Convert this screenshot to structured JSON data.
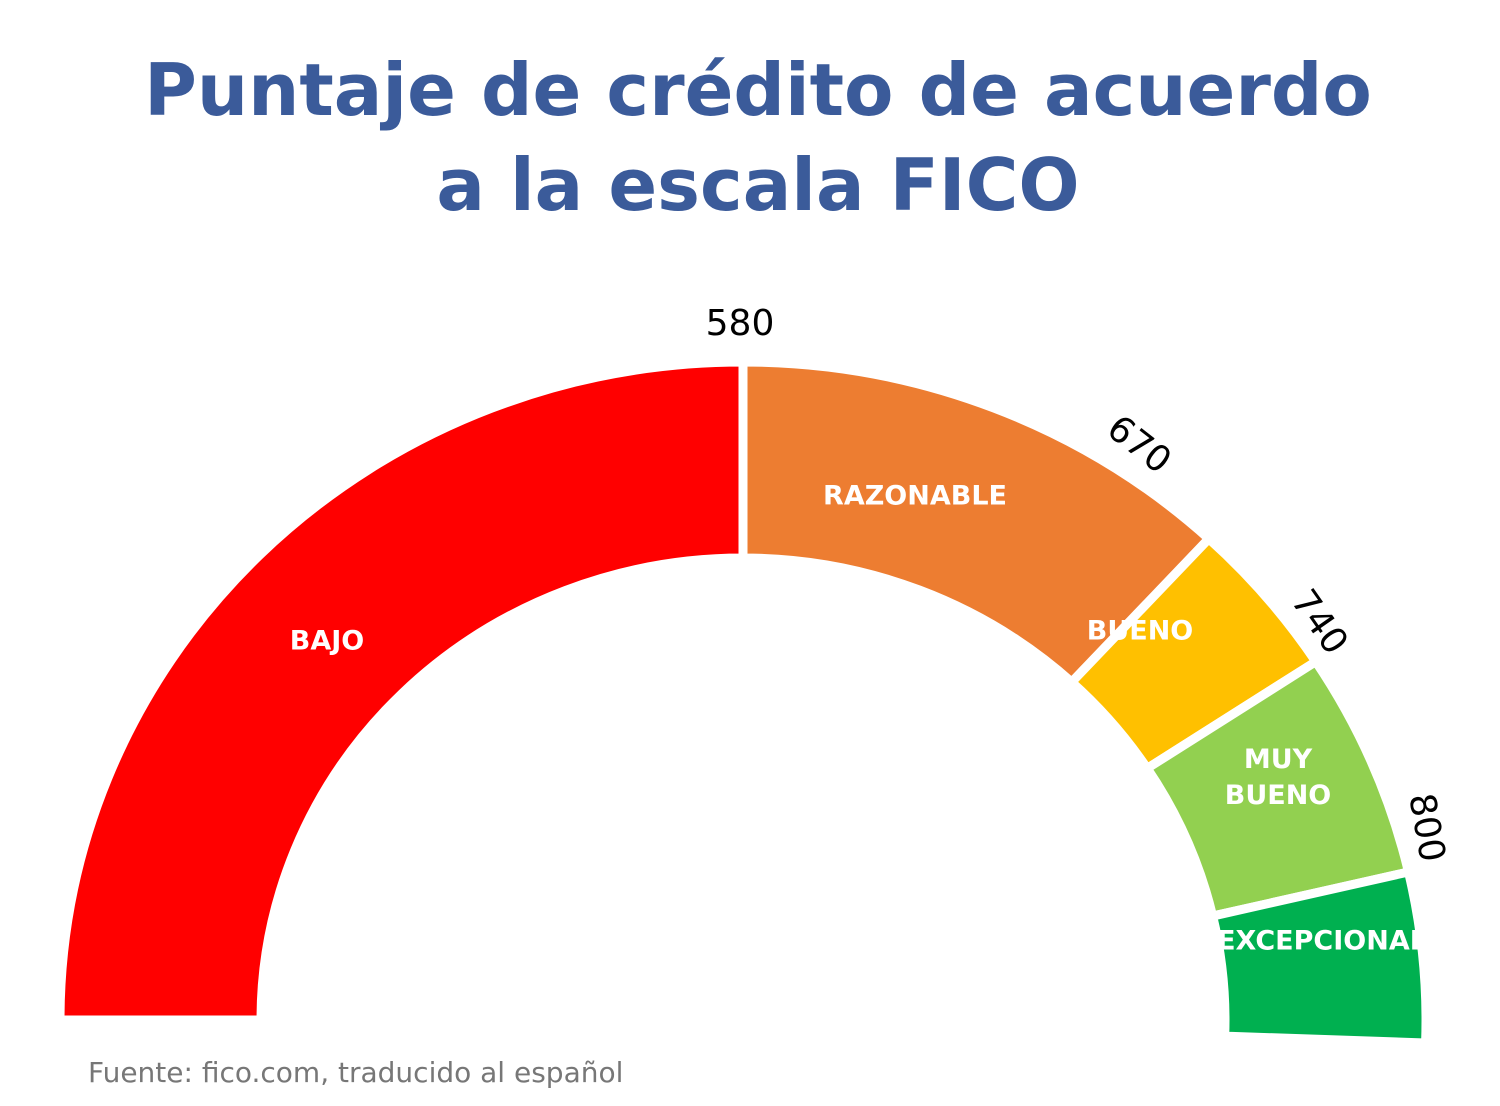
{
  "chart_data": {
    "type": "gauge",
    "title": [
      "Puntaje de crédito de acuerdo",
      "a la escala FICO"
    ],
    "segments": [
      {
        "name": "BAJO",
        "color": "#ff0000"
      },
      {
        "name": "RAZONABLE",
        "color": "#ed7d31"
      },
      {
        "name": "BUENO",
        "color": "#ffc000"
      },
      {
        "name": "MUY BUENO",
        "color": "#92d050"
      },
      {
        "name": "EXCEPCIONAL",
        "color": "#00b050"
      }
    ],
    "ticks": [
      580,
      670,
      740,
      800
    ],
    "source": "Fuente: fico.com, traducido al español"
  }
}
